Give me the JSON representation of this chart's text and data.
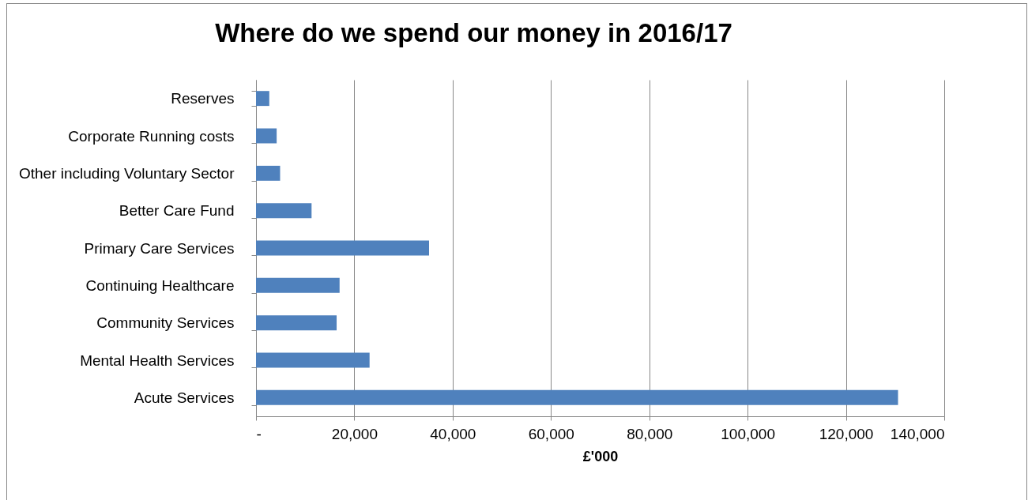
{
  "chart_data": {
    "type": "bar",
    "orientation": "horizontal",
    "title": "Where do we spend our money in 2016/17",
    "xlabel": "£'000",
    "categories": [
      "Reserves",
      "Corporate Running costs",
      "Other including Voluntary Sector",
      "Better Care Fund",
      "Primary Care Services",
      "Continuing Healthcare",
      "Community Services",
      "Mental Health Services",
      "Acute Services"
    ],
    "values": [
      2700,
      4200,
      4900,
      11300,
      35200,
      17000,
      16400,
      23100,
      130600
    ],
    "color": "#4f81bd",
    "xlim": [
      0,
      140000
    ],
    "xticks": [
      {
        "value": 0,
        "label": "-"
      },
      {
        "value": 20000,
        "label": "20,000"
      },
      {
        "value": 40000,
        "label": "40,000"
      },
      {
        "value": 60000,
        "label": "60,000"
      },
      {
        "value": 80000,
        "label": "80,000"
      },
      {
        "value": 100000,
        "label": "100,000"
      },
      {
        "value": 120000,
        "label": "120,000"
      },
      {
        "value": 140000,
        "label": "140,000"
      }
    ],
    "grid": "x"
  }
}
